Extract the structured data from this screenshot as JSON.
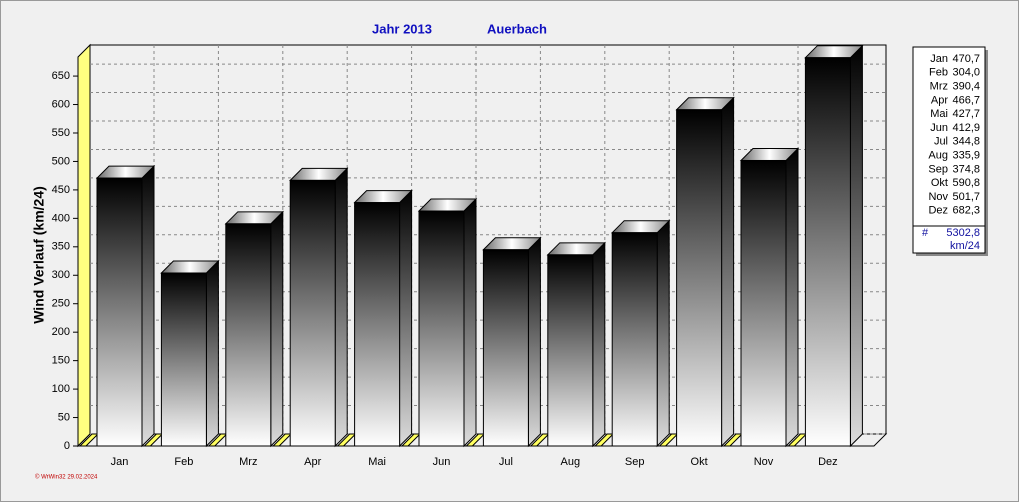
{
  "chart_data": {
    "type": "bar3d",
    "title": "Jahr  2013",
    "subtitle": "Auerbach",
    "ylabel": "Wind Verlauf  (km/24)",
    "footer": "© WrWin32  29.02.2024",
    "categories": [
      "Jan",
      "Feb",
      "Mrz",
      "Apr",
      "Mai",
      "Jun",
      "Jul",
      "Aug",
      "Sep",
      "Okt",
      "Nov",
      "Dez"
    ],
    "values": [
      470.7,
      304.0,
      390.4,
      466.7,
      427.7,
      412.9,
      344.8,
      335.9,
      374.8,
      590.8,
      501.7,
      682.3
    ],
    "value_labels": [
      "470,7",
      "304,0",
      "390,4",
      "466,7",
      "427,7",
      "412,9",
      "344,8",
      "335,9",
      "374,8",
      "590,8",
      "501,7",
      "682,3"
    ],
    "total_symbol": "#",
    "total": {
      "value": 5302.8,
      "label": "5302,8"
    },
    "unit": "km/24",
    "ylim": [
      0,
      680
    ],
    "yticks": [
      0,
      50,
      100,
      150,
      200,
      250,
      300,
      350,
      400,
      450,
      500,
      550,
      600,
      650
    ],
    "grid": true,
    "legend": "right"
  }
}
